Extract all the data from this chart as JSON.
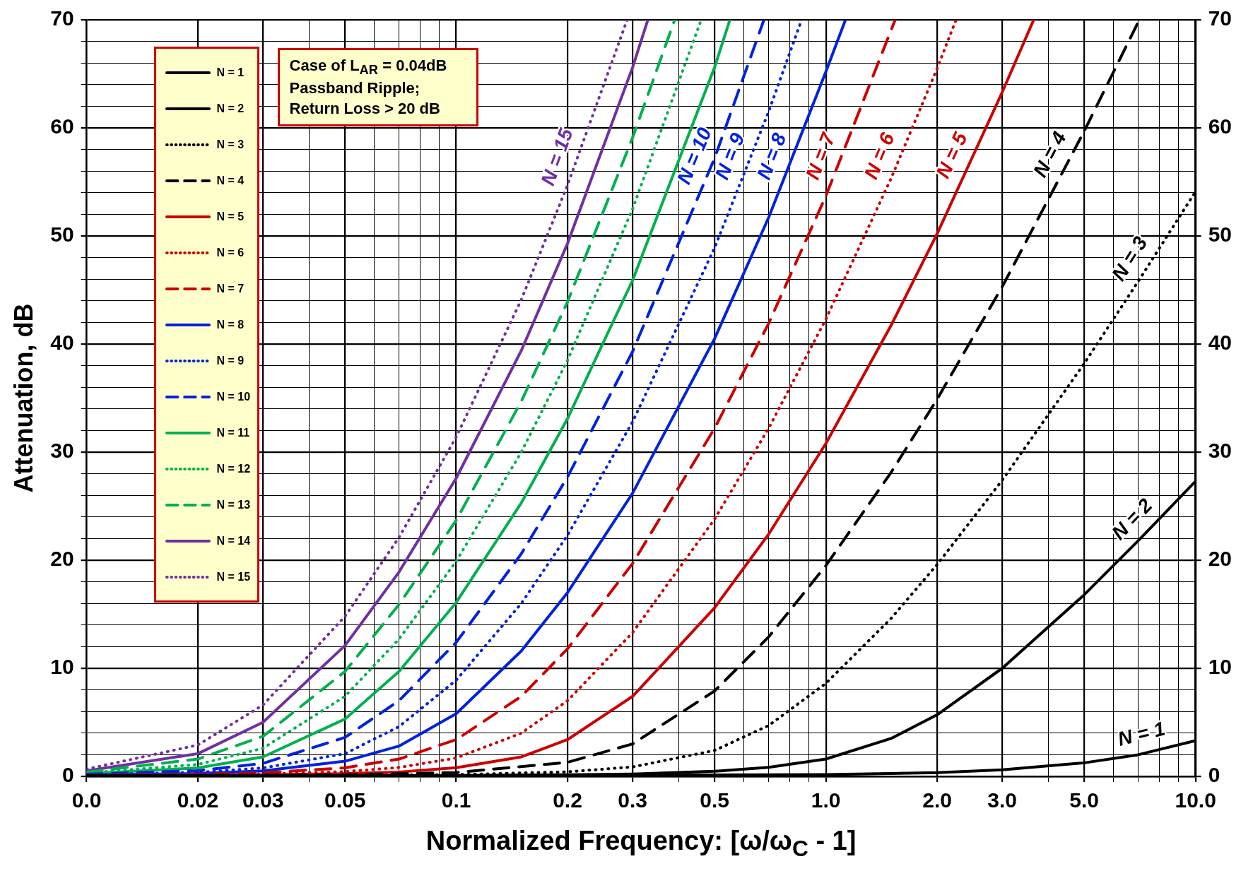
{
  "chart_data": {
    "type": "line",
    "xlabel": "Normalized Frequency: [ω/ω$_{C}$ - 1]",
    "ylabel": "Attenuation, dB",
    "log": "x",
    "grid": true,
    "legend": "top left",
    "marker": "none",
    "xlim": [
      0.01,
      10
    ],
    "xticks": [
      {
        "value": 0.01,
        "label": "0.0"
      },
      0.02,
      0.03,
      {
        "value": 0.04,
        "label": null
      },
      0.05,
      {
        "value": 0.06,
        "label": null
      },
      {
        "value": 0.07,
        "label": null
      },
      {
        "value": 0.08,
        "label": null
      },
      {
        "value": 0.09,
        "label": null
      },
      0.1,
      0.2,
      0.3,
      {
        "value": 0.4,
        "label": null
      },
      0.5,
      {
        "value": 0.6,
        "label": null
      },
      {
        "value": 0.7,
        "label": null
      },
      {
        "value": 0.8,
        "label": null
      },
      {
        "value": 0.9,
        "label": null
      },
      {
        "value": 1,
        "label": "1.0"
      },
      {
        "value": 2,
        "label": "2.0"
      },
      {
        "value": 3,
        "label": "3.0"
      },
      {
        "value": 4,
        "label": null
      },
      {
        "value": 5,
        "label": "5.0"
      },
      {
        "value": 6,
        "label": null
      },
      {
        "value": 7,
        "label": null
      },
      {
        "value": 8,
        "label": null
      },
      {
        "value": 9,
        "label": null
      },
      {
        "value": 10,
        "label": "10.0"
      }
    ],
    "ylim": [
      0,
      70
    ],
    "yticks": [
      0,
      {
        "value": 2,
        "label": null
      },
      {
        "value": 4,
        "label": null
      },
      {
        "value": 6,
        "label": null
      },
      {
        "value": 8,
        "label": null
      },
      10,
      {
        "value": 12,
        "label": null
      },
      {
        "value": 14,
        "label": null
      },
      {
        "value": 16,
        "label": null
      },
      {
        "value": 18,
        "label": null
      },
      20,
      {
        "value": 22,
        "label": null
      },
      {
        "value": 24,
        "label": null
      },
      {
        "value": 26,
        "label": null
      },
      {
        "value": 28,
        "label": null
      },
      30,
      {
        "value": 32,
        "label": null
      },
      {
        "value": 34,
        "label": null
      },
      {
        "value": 36,
        "label": null
      },
      {
        "value": 38,
        "label": null
      },
      40,
      {
        "value": 42,
        "label": null
      },
      {
        "value": 44,
        "label": null
      },
      {
        "value": 46,
        "label": null
      },
      {
        "value": 48,
        "label": null
      },
      50,
      {
        "value": 52,
        "label": null
      },
      {
        "value": 54,
        "label": null
      },
      {
        "value": 56,
        "label": null
      },
      {
        "value": 58,
        "label": null
      },
      60,
      {
        "value": 62,
        "label": null
      },
      {
        "value": 64,
        "label": null
      },
      {
        "value": 66,
        "label": null
      },
      {
        "value": 68,
        "label": null
      },
      70
    ],
    "y2lim": [
      0,
      70
    ],
    "y2ticks": [
      0,
      10,
      20,
      30,
      40,
      50,
      60,
      70
    ],
    "series": [
      {
        "name": "N = 1",
        "color": "#000000",
        "line_style": "solid",
        "x": [
          0.01,
          0.1,
          1,
          2,
          3,
          5,
          7,
          10
        ],
        "values": [
          0.04,
          0.05,
          0.16,
          0.35,
          0.6,
          1.25,
          2.0,
          3.3
        ]
      },
      {
        "name": "N = 2",
        "color": "#000000",
        "line_style": "solid",
        "x": [
          0.01,
          0.1,
          0.2,
          0.3,
          0.5,
          0.7,
          1,
          1.5,
          2,
          3,
          5,
          7,
          10
        ],
        "values": [
          0.04,
          0.08,
          0.14,
          0.22,
          0.47,
          0.83,
          1.6,
          3.5,
          5.7,
          10,
          16.8,
          21.8,
          27.3
        ]
      },
      {
        "name": "N = 3",
        "color": "#000000",
        "line_style": "dotted",
        "x": [
          0.01,
          0.05,
          0.1,
          0.2,
          0.3,
          0.5,
          0.7,
          1,
          1.5,
          2,
          3,
          5,
          7,
          10
        ],
        "values": [
          0.05,
          0.09,
          0.16,
          0.42,
          0.87,
          2.4,
          4.7,
          8.6,
          14.6,
          19.6,
          27.4,
          38.2,
          45.8,
          54.1
        ]
      },
      {
        "name": "N = 4",
        "color": "#000000",
        "line_style": "dashed",
        "x": [
          0.01,
          0.05,
          0.1,
          0.2,
          0.3,
          0.5,
          0.7,
          1,
          1.5,
          2,
          3,
          5,
          7
        ],
        "values": [
          0.05,
          0.14,
          0.35,
          1.3,
          3.0,
          7.9,
          12.9,
          19.5,
          28.1,
          34.9,
          45.3,
          59.7,
          69.8
        ]
      },
      {
        "name": "N = 5",
        "color": "#cc0000",
        "line_style": "solid",
        "x": [
          0.01,
          0.02,
          0.03,
          0.05,
          0.07,
          0.1,
          0.15,
          0.2,
          0.3,
          0.5,
          0.7,
          1,
          1.5,
          2,
          3,
          3.65
        ],
        "values": [
          0.06,
          0.1,
          0.14,
          0.25,
          0.4,
          0.8,
          1.8,
          3.4,
          7.4,
          15.6,
          22.4,
          30.8,
          41.7,
          50.2,
          63.3,
          70
        ]
      },
      {
        "name": "N = 6",
        "color": "#cc0000",
        "line_style": "dotted",
        "x": [
          0.01,
          0.02,
          0.03,
          0.05,
          0.07,
          0.1,
          0.15,
          0.2,
          0.3,
          0.5,
          0.7,
          1,
          1.5,
          2,
          2.25
        ],
        "values": [
          0.08,
          0.13,
          0.21,
          0.44,
          0.82,
          1.7,
          4.0,
          7.0,
          13.3,
          23.8,
          32.2,
          42.3,
          55.3,
          65.5,
          70
        ]
      },
      {
        "name": "N = 7",
        "color": "#cc0000",
        "line_style": "dashed",
        "x": [
          0.01,
          0.02,
          0.03,
          0.05,
          0.07,
          0.1,
          0.15,
          0.2,
          0.3,
          0.5,
          0.7,
          1,
          1.54
        ],
        "values": [
          0.09,
          0.18,
          0.32,
          0.79,
          1.6,
          3.4,
          7.4,
          11.8,
          19.7,
          32.2,
          41.9,
          53.7,
          70
        ]
      },
      {
        "name": "N = 8",
        "color": "#0022dd",
        "line_style": "solid",
        "x": [
          0.01,
          0.02,
          0.03,
          0.05,
          0.07,
          0.1,
          0.15,
          0.2,
          0.3,
          0.5,
          0.7,
          1,
          1.13
        ],
        "values": [
          0.12,
          0.26,
          0.5,
          1.4,
          2.8,
          5.8,
          11.6,
          17.0,
          26.2,
          40.5,
          51.7,
          65.2,
          70
        ]
      },
      {
        "name": "N = 9",
        "color": "#0022dd",
        "line_style": "dotted",
        "x": [
          0.01,
          0.02,
          0.03,
          0.05,
          0.07,
          0.1,
          0.15,
          0.2,
          0.3,
          0.5,
          0.7,
          0.86
        ],
        "values": [
          0.15,
          0.37,
          0.78,
          2.1,
          4.6,
          8.9,
          16.0,
          22.3,
          32.8,
          48.9,
          61.5,
          70
        ]
      },
      {
        "name": "N = 10",
        "color": "#0022dd",
        "line_style": "dashed",
        "x": [
          0.01,
          0.02,
          0.03,
          0.05,
          0.07,
          0.1,
          0.15,
          0.2,
          0.3,
          0.5,
          0.68
        ],
        "values": [
          0.19,
          0.53,
          1.2,
          3.6,
          7.0,
          12.4,
          20.6,
          27.7,
          39.3,
          57.2,
          70
        ]
      },
      {
        "name": "N = 11",
        "color": "#00b050",
        "line_style": "solid",
        "x": [
          0.01,
          0.02,
          0.03,
          0.05,
          0.07,
          0.1,
          0.15,
          0.2,
          0.3,
          0.5,
          0.55
        ],
        "values": [
          0.24,
          0.78,
          1.8,
          5.3,
          9.7,
          16.1,
          25.3,
          33.1,
          45.9,
          65.6,
          70
        ]
      },
      {
        "name": "N = 12",
        "color": "#00b050",
        "line_style": "dotted",
        "x": [
          0.01,
          0.02,
          0.03,
          0.05,
          0.07,
          0.1,
          0.15,
          0.2,
          0.3,
          0.46
        ],
        "values": [
          0.31,
          1.1,
          2.6,
          7.4,
          12.7,
          19.9,
          30.0,
          38.5,
          52.5,
          70
        ]
      },
      {
        "name": "N = 13",
        "color": "#00b050",
        "line_style": "dashed",
        "x": [
          0.01,
          0.02,
          0.03,
          0.05,
          0.07,
          0.1,
          0.15,
          0.2,
          0.3,
          0.39
        ],
        "values": [
          0.39,
          1.6,
          3.7,
          9.7,
          15.9,
          23.7,
          34.7,
          43.9,
          59.1,
          70
        ]
      },
      {
        "name": "N = 14",
        "color": "#7030a0",
        "line_style": "solid",
        "x": [
          0.01,
          0.02,
          0.03,
          0.05,
          0.07,
          0.1,
          0.15,
          0.2,
          0.3,
          0.33
        ],
        "values": [
          0.51,
          2.1,
          5.0,
          12.1,
          18.9,
          27.6,
          39.4,
          49.3,
          65.6,
          70
        ]
      },
      {
        "name": "N = 15",
        "color": "#7030a0",
        "line_style": "dotted",
        "x": [
          0.01,
          0.02,
          0.03,
          0.05,
          0.07,
          0.1,
          0.15,
          0.2,
          0.29
        ],
        "values": [
          0.67,
          2.9,
          6.6,
          14.8,
          22.1,
          31.4,
          44.1,
          54.7,
          70
        ]
      }
    ],
    "annotations": [
      "Case of L$_{AR}$ = 0.04dB Passband Ripple; Return Loss > 20 dB",
      "N = 15",
      "N = 10",
      "N = 9",
      "N = 8",
      "N = 7",
      "N = 6",
      "N = 5",
      "N = 4",
      "N = 3",
      "N = 2",
      "N = 1"
    ]
  }
}
